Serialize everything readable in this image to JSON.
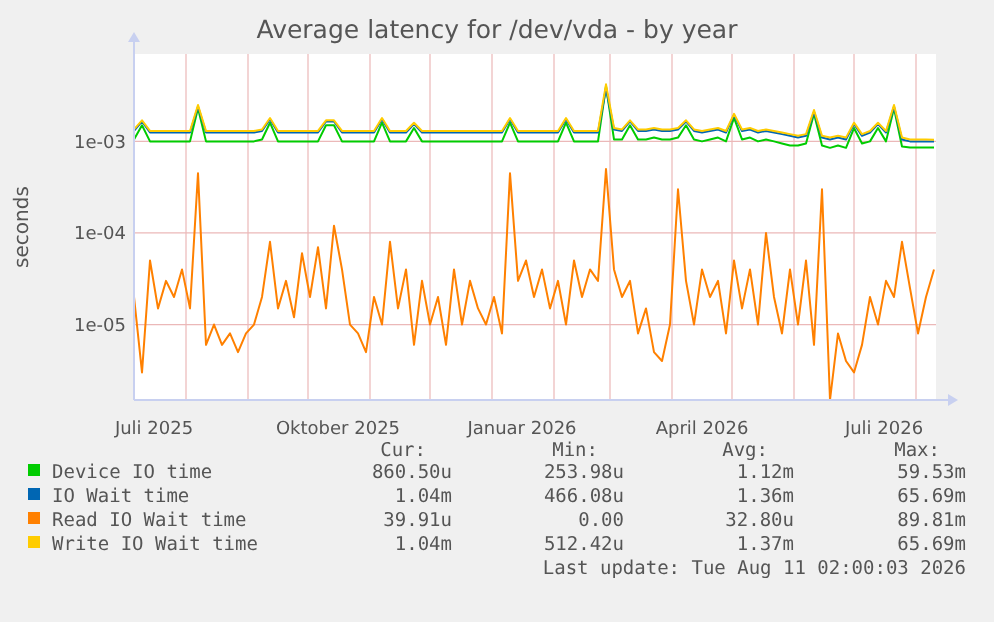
{
  "chart_data": {
    "type": "line",
    "title": "Average latency for /dev/vda - by year",
    "ylabel": "seconds",
    "log": "y",
    "grid": true,
    "legend": "bottom",
    "xlim": [
      "2025-07-06",
      "2026-08-11"
    ],
    "xticks": [
      {
        "value": "2025-07-16",
        "label": "Juli 2025"
      },
      {
        "value": "2025-10-16",
        "label": "Oktober 2025"
      },
      {
        "value": "2026-01-16",
        "label": "Januar 2026"
      },
      {
        "value": "2026-04-16",
        "label": "April 2026"
      },
      {
        "value": "2026-07-16",
        "label": "Juli 2026"
      },
      {
        "value": "2025-08-01",
        "label": null
      },
      {
        "value": "2025-09-01",
        "label": null
      },
      {
        "value": "2025-10-01",
        "label": null
      },
      {
        "value": "2025-11-01",
        "label": null
      },
      {
        "value": "2025-12-01",
        "label": null
      },
      {
        "value": "2026-01-01",
        "label": null
      },
      {
        "value": "2026-02-01",
        "label": null
      },
      {
        "value": "2026-03-01",
        "label": null
      },
      {
        "value": "2026-04-01",
        "label": null
      },
      {
        "value": "2026-05-01",
        "label": null
      },
      {
        "value": "2026-06-01",
        "label": null
      },
      {
        "value": "2026-07-01",
        "label": null
      },
      {
        "value": "2026-08-01",
        "label": null
      }
    ],
    "ylim": [
      1.5e-06,
      0.009
    ],
    "yticks": [
      {
        "value": 0.001,
        "label": "1e-03"
      },
      {
        "value": 0.0001,
        "label": "1e-04"
      },
      {
        "value": 1e-05,
        "label": "1e-05"
      }
    ],
    "x": [
      "2025-07-06",
      "2025-07-10",
      "2025-07-14",
      "2025-07-18",
      "2025-07-22",
      "2025-07-26",
      "2025-07-30",
      "2025-08-03",
      "2025-08-07",
      "2025-08-11",
      "2025-08-15",
      "2025-08-19",
      "2025-08-23",
      "2025-08-27",
      "2025-08-31",
      "2025-09-04",
      "2025-09-08",
      "2025-09-12",
      "2025-09-16",
      "2025-09-20",
      "2025-09-24",
      "2025-09-28",
      "2025-10-02",
      "2025-10-06",
      "2025-10-10",
      "2025-10-14",
      "2025-10-18",
      "2025-10-22",
      "2025-10-26",
      "2025-10-30",
      "2025-11-03",
      "2025-11-07",
      "2025-11-11",
      "2025-11-15",
      "2025-11-19",
      "2025-11-23",
      "2025-11-27",
      "2025-12-01",
      "2025-12-05",
      "2025-12-09",
      "2025-12-13",
      "2025-12-17",
      "2025-12-21",
      "2025-12-25",
      "2025-12-29",
      "2026-01-02",
      "2026-01-06",
      "2026-01-10",
      "2026-01-14",
      "2026-01-18",
      "2026-01-22",
      "2026-01-26",
      "2026-01-30",
      "2026-02-03",
      "2026-02-07",
      "2026-02-11",
      "2026-02-15",
      "2026-02-19",
      "2026-02-23",
      "2026-02-27",
      "2026-03-03",
      "2026-03-07",
      "2026-03-11",
      "2026-03-15",
      "2026-03-19",
      "2026-03-23",
      "2026-03-27",
      "2026-03-31",
      "2026-04-04",
      "2026-04-08",
      "2026-04-12",
      "2026-04-16",
      "2026-04-20",
      "2026-04-24",
      "2026-04-28",
      "2026-05-02",
      "2026-05-06",
      "2026-05-10",
      "2026-05-14",
      "2026-05-18",
      "2026-05-22",
      "2026-05-26",
      "2026-05-30",
      "2026-06-03",
      "2026-06-07",
      "2026-06-11",
      "2026-06-15",
      "2026-06-19",
      "2026-06-23",
      "2026-06-27",
      "2026-07-01",
      "2026-07-05",
      "2026-07-09",
      "2026-07-13",
      "2026-07-17",
      "2026-07-21",
      "2026-07-25",
      "2026-07-29",
      "2026-08-02",
      "2026-08-06",
      "2026-08-10"
    ],
    "series": [
      {
        "name": "Device IO time",
        "color": "#00cc00",
        "values": [
          0.00105,
          0.0015,
          0.001,
          0.001,
          0.001,
          0.001,
          0.001,
          0.001,
          0.0023,
          0.001,
          0.001,
          0.001,
          0.001,
          0.001,
          0.001,
          0.001,
          0.00105,
          0.0016,
          0.001,
          0.001,
          0.001,
          0.001,
          0.001,
          0.001,
          0.0015,
          0.0015,
          0.001,
          0.001,
          0.001,
          0.001,
          0.001,
          0.0016,
          0.001,
          0.001,
          0.001,
          0.0014,
          0.001,
          0.001,
          0.001,
          0.001,
          0.001,
          0.001,
          0.001,
          0.001,
          0.001,
          0.001,
          0.001,
          0.0016,
          0.001,
          0.001,
          0.001,
          0.001,
          0.001,
          0.001,
          0.0016,
          0.001,
          0.001,
          0.001,
          0.001,
          0.004,
          0.00105,
          0.00105,
          0.0015,
          0.00105,
          0.00105,
          0.0011,
          0.00105,
          0.00105,
          0.0011,
          0.0015,
          0.00105,
          0.001,
          0.00105,
          0.0011,
          0.001,
          0.0018,
          0.00105,
          0.0011,
          0.001,
          0.00105,
          0.001,
          0.00095,
          0.0009,
          0.0009,
          0.00095,
          0.002,
          0.0009,
          0.00085,
          0.0009,
          0.00085,
          0.0014,
          0.00095,
          0.001,
          0.0014,
          0.001,
          0.0023,
          0.00088,
          0.00086,
          0.00086,
          0.00086,
          0.00086
        ]
      },
      {
        "name": "IO Wait time",
        "color": "#0066b3",
        "values": [
          0.0013,
          0.00165,
          0.00125,
          0.00125,
          0.00125,
          0.00125,
          0.00125,
          0.00125,
          0.0024,
          0.00125,
          0.00125,
          0.00125,
          0.00125,
          0.00125,
          0.00125,
          0.00125,
          0.0013,
          0.00175,
          0.00125,
          0.00125,
          0.00125,
          0.00125,
          0.00125,
          0.00125,
          0.00165,
          0.00165,
          0.00125,
          0.00125,
          0.00125,
          0.00125,
          0.00125,
          0.00175,
          0.00125,
          0.00125,
          0.00125,
          0.00155,
          0.00125,
          0.00125,
          0.00125,
          0.00125,
          0.00125,
          0.00125,
          0.00125,
          0.00125,
          0.00125,
          0.00125,
          0.00125,
          0.00175,
          0.00125,
          0.00125,
          0.00125,
          0.00125,
          0.00125,
          0.00125,
          0.00175,
          0.00125,
          0.00125,
          0.00125,
          0.00125,
          0.0038,
          0.00135,
          0.0013,
          0.00165,
          0.0013,
          0.0013,
          0.00135,
          0.0013,
          0.0013,
          0.00135,
          0.00165,
          0.0013,
          0.00125,
          0.0013,
          0.00135,
          0.00125,
          0.00195,
          0.0013,
          0.00135,
          0.00125,
          0.0013,
          0.00125,
          0.0012,
          0.00115,
          0.0011,
          0.00115,
          0.0021,
          0.0011,
          0.00105,
          0.0011,
          0.00105,
          0.00155,
          0.00115,
          0.00125,
          0.00155,
          0.00125,
          0.0024,
          0.00105,
          0.001,
          0.001,
          0.001,
          0.001
        ]
      },
      {
        "name": "Read IO Wait time",
        "color": "#ff8000",
        "values": [
          2e-05,
          3e-06,
          5e-05,
          1.5e-05,
          3e-05,
          2e-05,
          4e-05,
          1.5e-05,
          0.00045,
          6e-06,
          1e-05,
          6e-06,
          8e-06,
          5e-06,
          8e-06,
          1e-05,
          2e-05,
          8e-05,
          1.5e-05,
          3e-05,
          1.2e-05,
          6e-05,
          2e-05,
          7e-05,
          1.5e-05,
          0.00012,
          4e-05,
          1e-05,
          8e-06,
          5e-06,
          2e-05,
          1e-05,
          8e-05,
          1.5e-05,
          4e-05,
          6e-06,
          3e-05,
          1e-05,
          2e-05,
          6e-06,
          4e-05,
          1e-05,
          3e-05,
          1.5e-05,
          1e-05,
          2e-05,
          8e-06,
          0.00045,
          3e-05,
          5e-05,
          2e-05,
          4e-05,
          1.5e-05,
          3e-05,
          1e-05,
          5e-05,
          2e-05,
          4e-05,
          3e-05,
          0.0005,
          4e-05,
          2e-05,
          3e-05,
          8e-06,
          1.5e-05,
          5e-06,
          4e-06,
          1e-05,
          0.0003,
          3e-05,
          1e-05,
          4e-05,
          2e-05,
          3e-05,
          8e-06,
          5e-05,
          1.5e-05,
          4e-05,
          1e-05,
          0.0001,
          2e-05,
          8e-06,
          4e-05,
          1e-05,
          5e-05,
          6e-06,
          0.0003,
          1.5e-06,
          8e-06,
          4e-06,
          3e-06,
          6e-06,
          2e-05,
          1e-05,
          3e-05,
          2e-05,
          8e-05,
          2.5e-05,
          8e-06,
          2e-05,
          4e-05
        ]
      },
      {
        "name": "Write IO Wait time",
        "color": "#ffcc00",
        "values": [
          0.00135,
          0.0017,
          0.0013,
          0.0013,
          0.0013,
          0.0013,
          0.0013,
          0.0013,
          0.0025,
          0.0013,
          0.0013,
          0.0013,
          0.0013,
          0.0013,
          0.0013,
          0.0013,
          0.00135,
          0.0018,
          0.0013,
          0.0013,
          0.0013,
          0.0013,
          0.0013,
          0.0013,
          0.0017,
          0.0017,
          0.0013,
          0.0013,
          0.0013,
          0.0013,
          0.0013,
          0.0018,
          0.0013,
          0.0013,
          0.0013,
          0.0016,
          0.0013,
          0.0013,
          0.0013,
          0.0013,
          0.0013,
          0.0013,
          0.0013,
          0.0013,
          0.0013,
          0.0013,
          0.0013,
          0.0018,
          0.0013,
          0.0013,
          0.0013,
          0.0013,
          0.0013,
          0.0013,
          0.0018,
          0.0013,
          0.0013,
          0.0013,
          0.0013,
          0.0042,
          0.0014,
          0.00135,
          0.0017,
          0.00135,
          0.00135,
          0.0014,
          0.00135,
          0.00135,
          0.0014,
          0.0017,
          0.00135,
          0.0013,
          0.00135,
          0.0014,
          0.0013,
          0.002,
          0.00135,
          0.0014,
          0.0013,
          0.00135,
          0.0013,
          0.00125,
          0.0012,
          0.00115,
          0.0012,
          0.0022,
          0.00115,
          0.0011,
          0.00115,
          0.0011,
          0.0016,
          0.0012,
          0.0013,
          0.0016,
          0.0013,
          0.0025,
          0.0011,
          0.00105,
          0.00105,
          0.00105,
          0.00104
        ]
      }
    ],
    "annotations": [
      "Cur:",
      "Min:",
      "Avg:",
      "Max:",
      "860.50u",
      "253.98u",
      "1.12m",
      "59.53m",
      "1.04m",
      "466.08u",
      "1.36m",
      "65.69m",
      "39.91u",
      "0.00",
      "32.80u",
      "89.81m",
      "1.04m",
      "512.42u",
      "1.37m",
      "65.69m",
      "Last update: Tue Aug 11 02:00:03 2026"
    ]
  }
}
